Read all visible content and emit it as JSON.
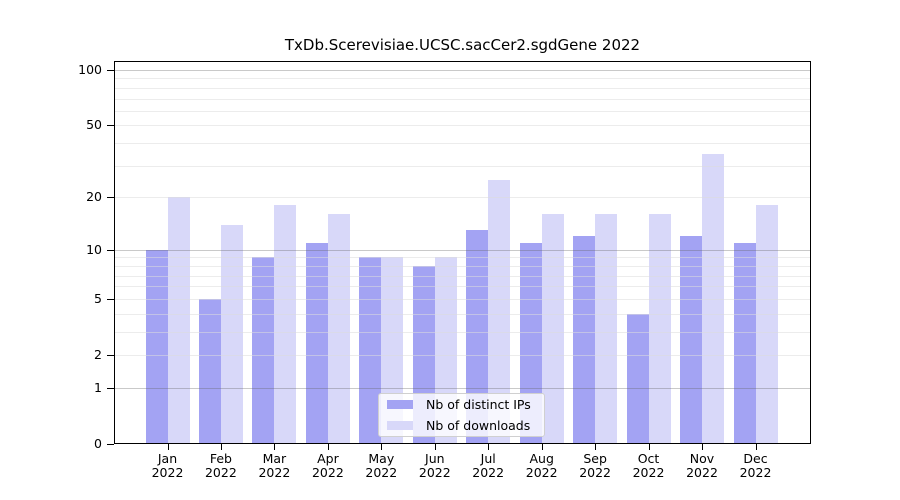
{
  "chart_data": {
    "type": "bar",
    "title": "TxDb.Scerevisiae.UCSC.sacCer2.sgdGene 2022",
    "year_label": "2022",
    "categories": [
      "Jan",
      "Feb",
      "Mar",
      "Apr",
      "May",
      "Jun",
      "Jul",
      "Aug",
      "Sep",
      "Oct",
      "Nov",
      "Dec"
    ],
    "series": [
      {
        "name": "Nb of distinct IPs",
        "color": "#a3a3f3",
        "values": [
          10,
          5,
          9,
          11,
          9,
          8,
          13,
          11,
          12,
          4,
          12,
          11
        ]
      },
      {
        "name": "Nb of downloads",
        "color": "#d8d8f9",
        "values": [
          20,
          14,
          18,
          16,
          9,
          9,
          25,
          16,
          16,
          16,
          35,
          18
        ]
      }
    ],
    "y_axis": {
      "scale": "log1p",
      "tick_values": [
        0,
        1,
        2,
        5,
        10,
        20,
        50,
        100
      ],
      "range_max": 112
    },
    "grid": {
      "major_lines_at": [
        1,
        10,
        100
      ],
      "minor_lines_at": [
        2,
        3,
        4,
        5,
        6,
        7,
        8,
        9,
        20,
        30,
        40,
        50,
        60,
        70,
        80,
        90
      ]
    },
    "legend_position": "lower center",
    "background_color": "#ffffff",
    "spine_color": "#000000"
  }
}
